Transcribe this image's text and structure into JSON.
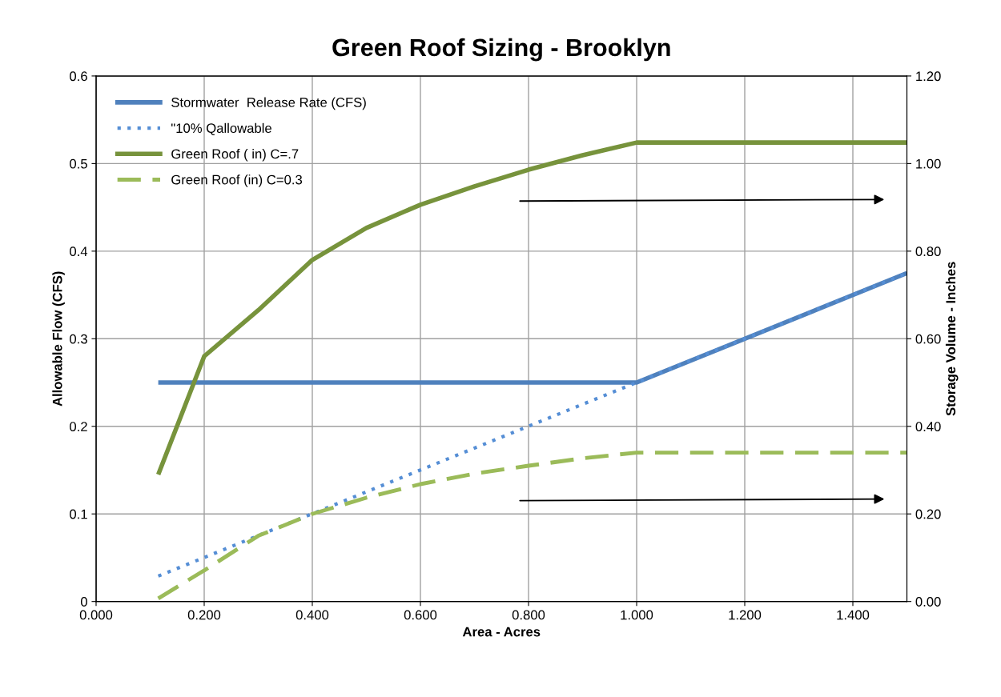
{
  "chart_data": {
    "type": "line",
    "title": "Green Roof Sizing - Brooklyn",
    "xlabel": "Area - Acres",
    "ylabel": "Allowable Flow (CFS)",
    "y2label": "Storage Volume - Inches",
    "xlim": [
      0,
      1.5
    ],
    "xticks": [
      {
        "value": 0,
        "label": "0.000"
      },
      {
        "value": 0.2,
        "label": "0.200"
      },
      {
        "value": 0.4,
        "label": "0.400"
      },
      {
        "value": 0.6,
        "label": "0.600"
      },
      {
        "value": 0.8,
        "label": "0.800"
      },
      {
        "value": 1.0,
        "label": "1.000"
      },
      {
        "value": 1.2,
        "label": "1.200"
      },
      {
        "value": 1.4,
        "label": "1.400"
      }
    ],
    "ylim": [
      0,
      0.6
    ],
    "yticks": [
      0,
      0.1,
      0.2,
      0.3,
      0.4,
      0.5,
      0.6
    ],
    "y2lim": [
      0,
      1.2
    ],
    "y2ticks": [
      {
        "value": 0,
        "label": "0.00"
      },
      {
        "value": 0.2,
        "label": "0.20"
      },
      {
        "value": 0.4,
        "label": "0.40"
      },
      {
        "value": 0.6,
        "label": "0.60"
      },
      {
        "value": 0.8,
        "label": "0.80"
      },
      {
        "value": 1.0,
        "label": "1.00"
      },
      {
        "value": 1.2,
        "label": "1.20"
      }
    ],
    "grid": true,
    "legend": "top left",
    "marker": "none",
    "series": [
      {
        "name": "Stormwater  Release Rate (CFS)",
        "color": "#4f81bd",
        "line_style": "solid",
        "x": [
          0.115,
          1.0,
          1.5
        ],
        "values": [
          0.25,
          0.25,
          0.375
        ]
      },
      {
        "name": "\"10% Qallowable",
        "color": "#558ed5",
        "line_style": "dotted",
        "x": [
          0.115,
          1.5
        ],
        "values": [
          0.029,
          0.375
        ]
      },
      {
        "name": "Green Roof ( in) C=.7",
        "color": "#77933c",
        "line_style": "solid",
        "axis": "y2",
        "x": [
          0.115,
          0.2,
          0.3,
          0.4,
          0.5,
          0.6,
          0.7,
          0.8,
          0.9,
          1.0,
          1.5
        ],
        "values": [
          0.29,
          0.56,
          0.665,
          0.78,
          0.853,
          0.906,
          0.948,
          0.986,
          1.019,
          1.048,
          1.048
        ]
      },
      {
        "name": "Green Roof (in) C=0.3",
        "color": "#9bbb59",
        "line_style": "dashed",
        "axis": "y2",
        "x": [
          0.115,
          0.2,
          0.3,
          0.4,
          0.5,
          0.6,
          0.7,
          0.8,
          0.9,
          1.0,
          1.5
        ],
        "values": [
          0.007,
          0.071,
          0.15,
          0.2,
          0.237,
          0.268,
          0.292,
          0.31,
          0.327,
          0.34,
          0.34
        ]
      }
    ]
  }
}
